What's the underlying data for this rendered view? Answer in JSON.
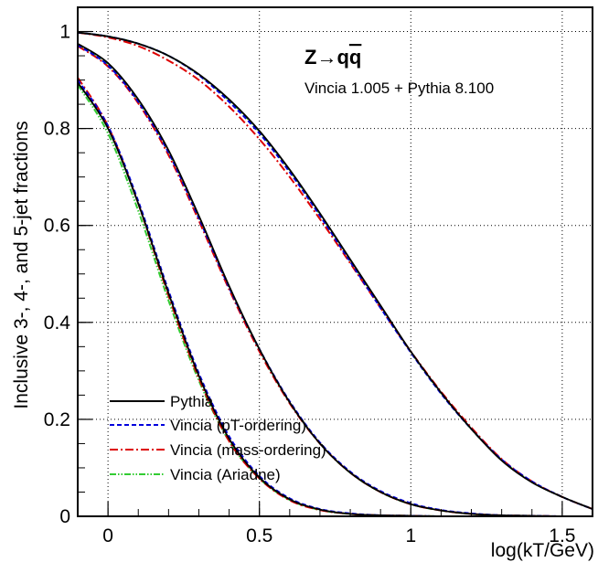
{
  "chart_data": {
    "type": "line",
    "xlabel": "log(kT/GeV)",
    "ylabel": "Inclusive 3-,  4-, and 5-jet fractions",
    "xlim": [
      -0.1,
      1.6
    ],
    "ylim": [
      0,
      1.05
    ],
    "grid": true,
    "x_ticks": [
      "0",
      "0.5",
      "1",
      "1.5"
    ],
    "y_ticks": [
      "0",
      "0.2",
      "0.4",
      "0.6",
      "0.8",
      "1"
    ],
    "annotations": {
      "process": "Z→q",
      "process_qbar": "q",
      "generator": "Vincia 1.005 + Pythia 8.100"
    },
    "legend_position": "bottom-left",
    "colors": {
      "pythia": "#000000",
      "pt": "#0000dd",
      "mass": "#dd0000",
      "ariadne": "#33cc33"
    },
    "x": [
      -0.1,
      0.0,
      0.1,
      0.2,
      0.3,
      0.4,
      0.5,
      0.6,
      0.7,
      0.8,
      0.9,
      1.0,
      1.1,
      1.2,
      1.3,
      1.4,
      1.5,
      1.6
    ],
    "series": [
      {
        "name": "Pythia",
        "style": "solid",
        "curves": [
          [
            0.998,
            0.99,
            0.975,
            0.95,
            0.912,
            0.86,
            0.795,
            0.715,
            0.625,
            0.53,
            0.435,
            0.34,
            0.255,
            0.18,
            0.115,
            0.07,
            0.04,
            0.015
          ],
          [
            0.975,
            0.935,
            0.86,
            0.755,
            0.62,
            0.475,
            0.345,
            0.235,
            0.15,
            0.09,
            0.05,
            0.025,
            0.012,
            0.005,
            0.002,
            0.001,
            0.0,
            0.0
          ],
          [
            0.895,
            0.8,
            0.645,
            0.46,
            0.29,
            0.16,
            0.08,
            0.035,
            0.014,
            0.005,
            0.002,
            0.001,
            0.0,
            0.0,
            0.0,
            0.0,
            0.0,
            0.0
          ]
        ]
      },
      {
        "name": "Vincia (pT-ordering)",
        "style": "dashed",
        "curves": [
          [
            0.998,
            0.99,
            0.975,
            0.95,
            0.91,
            0.855,
            0.79,
            0.71,
            0.62,
            0.525,
            0.43,
            0.338,
            0.253,
            0.18,
            0.117,
            0.072,
            0.04,
            0.015
          ],
          [
            0.972,
            0.93,
            0.855,
            0.75,
            0.615,
            0.472,
            0.345,
            0.237,
            0.152,
            0.092,
            0.052,
            0.027,
            0.013,
            0.006,
            0.002,
            0.001,
            0.0,
            0.0
          ],
          [
            0.9,
            0.805,
            0.65,
            0.465,
            0.295,
            0.165,
            0.083,
            0.037,
            0.015,
            0.006,
            0.002,
            0.001,
            0.0,
            0.0,
            0.0,
            0.0,
            0.0,
            0.0
          ]
        ]
      },
      {
        "name": "Vincia (mass-ordering)",
        "style": "dashdot",
        "curves": [
          [
            0.998,
            0.988,
            0.97,
            0.94,
            0.9,
            0.845,
            0.778,
            0.7,
            0.613,
            0.522,
            0.43,
            0.34,
            0.257,
            0.183,
            0.118,
            0.072,
            0.04,
            0.015
          ],
          [
            0.97,
            0.928,
            0.852,
            0.745,
            0.61,
            0.468,
            0.34,
            0.233,
            0.15,
            0.09,
            0.05,
            0.025,
            0.012,
            0.005,
            0.002,
            0.001,
            0.0,
            0.0
          ],
          [
            0.905,
            0.805,
            0.645,
            0.455,
            0.285,
            0.155,
            0.078,
            0.033,
            0.013,
            0.005,
            0.002,
            0.001,
            0.0,
            0.0,
            0.0,
            0.0,
            0.0,
            0.0
          ]
        ]
      },
      {
        "name": "Vincia (Ariadne)",
        "style": "dashdotdot",
        "curves": [
          [
            0.998,
            0.99,
            0.975,
            0.95,
            0.911,
            0.858,
            0.793,
            0.713,
            0.623,
            0.528,
            0.433,
            0.339,
            0.254,
            0.18,
            0.116,
            0.071,
            0.04,
            0.015
          ],
          [
            0.973,
            0.932,
            0.857,
            0.752,
            0.617,
            0.473,
            0.344,
            0.235,
            0.15,
            0.09,
            0.05,
            0.025,
            0.012,
            0.005,
            0.002,
            0.001,
            0.0,
            0.0
          ],
          [
            0.89,
            0.79,
            0.63,
            0.445,
            0.28,
            0.155,
            0.078,
            0.034,
            0.013,
            0.005,
            0.002,
            0.001,
            0.0,
            0.0,
            0.0,
            0.0,
            0.0,
            0.0
          ]
        ]
      }
    ]
  }
}
